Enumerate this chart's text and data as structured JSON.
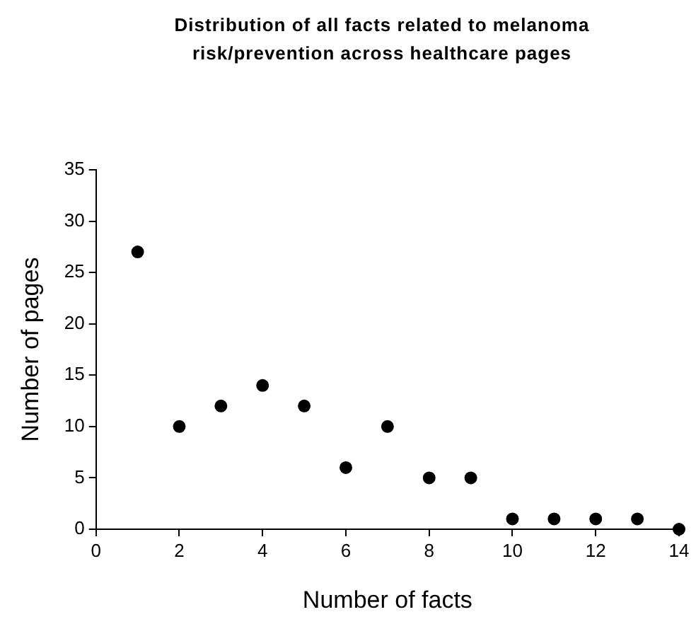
{
  "chart_data": {
    "type": "scatter",
    "title": "Distribution of all facts related to melanoma risk/prevention across healthcare pages",
    "xlabel": "Number of facts",
    "ylabel": "Number of pages",
    "x": [
      1,
      2,
      3,
      4,
      5,
      6,
      7,
      8,
      9,
      10,
      11,
      12,
      13,
      14
    ],
    "series": [
      {
        "color": "#000000",
        "values": [
          27,
          10,
          12,
          14,
          12,
          6,
          10,
          5,
          5,
          1,
          1,
          1,
          1,
          0
        ]
      }
    ],
    "xlim": [
      0,
      14
    ],
    "xticks": [
      0,
      2,
      4,
      6,
      8,
      10,
      12,
      14
    ],
    "ylim": [
      0,
      35
    ],
    "yticks": [
      0,
      5,
      10,
      15,
      20,
      25,
      30,
      35
    ],
    "grid": false,
    "legend": false,
    "marker": "circle"
  }
}
